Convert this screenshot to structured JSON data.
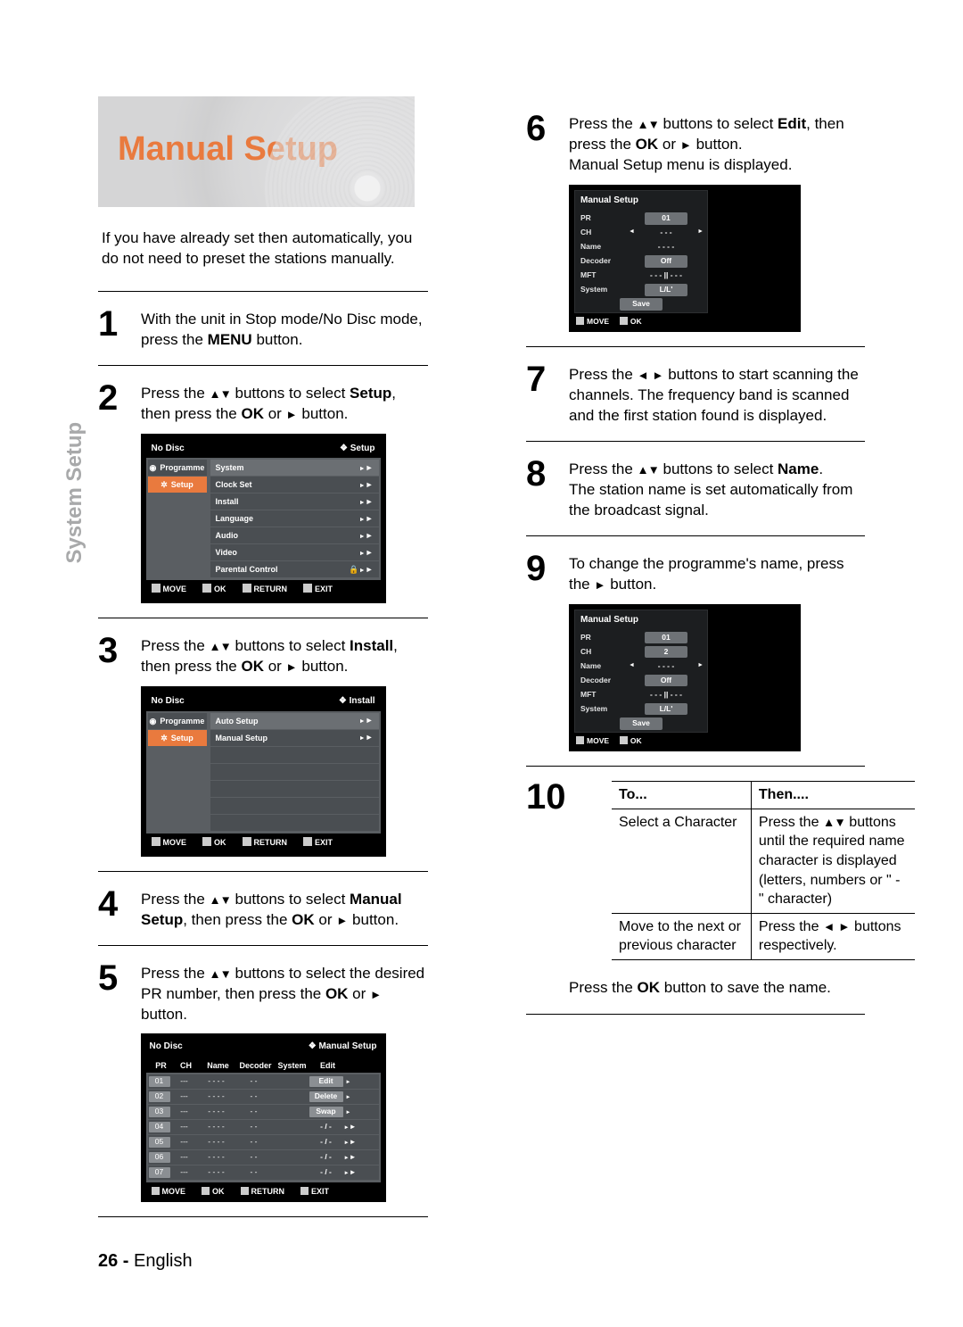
{
  "side_tab": "System Setup",
  "title": "Manual Setup",
  "intro": "If you have already set then automatically, you do not need to preset the stations manually.",
  "steps": {
    "s1": {
      "n": "1",
      "before": "With the unit in Stop mode/No Disc mode, press the ",
      "bold": "MENU",
      "after": " button."
    },
    "s2": {
      "n": "2",
      "txt_a": "Press the ",
      "txt_b": " buttons to select ",
      "bold": "Setup",
      "txt_c": ", then press the ",
      "bold2": "OK",
      "txt_d": " or ",
      "txt_e": " button."
    },
    "s3": {
      "n": "3",
      "txt_a": "Press the ",
      "txt_b": " buttons to select ",
      "bold": "Install",
      "txt_c": ", then press the ",
      "bold2": "OK",
      "txt_d": " or ",
      "txt_e": " button."
    },
    "s4": {
      "n": "4",
      "txt_a": "Press the ",
      "txt_b": " buttons to select ",
      "bold": "Manual Setup",
      "txt_c": ", then press the ",
      "bold2": "OK",
      "txt_d": " or ",
      "txt_e": " button."
    },
    "s5": {
      "n": "5",
      "txt_a": "Press the ",
      "txt_b": " buttons to select the desired PR number, then press the ",
      "bold": "OK",
      "txt_c": " or ",
      "txt_d": " button."
    },
    "s6": {
      "n": "6",
      "txt_a": "Press the ",
      "txt_b": " buttons to select ",
      "bold": "Edit",
      "txt_c": ", then press the ",
      "bold2": "OK",
      "txt_d": " or ",
      "txt_e": " button.",
      "tail": "Manual Setup menu is displayed."
    },
    "s7": {
      "n": "7",
      "txt_a": "Press the ",
      "txt_b": " buttons to start scanning the channels. The frequency band is scanned and the first station found is displayed."
    },
    "s8": {
      "n": "8",
      "txt_a": "Press the ",
      "txt_b": " buttons to select ",
      "bold": "Name",
      "txt_c": ".",
      "tail": "The station name is set automatically from the broadcast signal."
    },
    "s9": {
      "n": "9",
      "txt_a": "To change the programme's name, press the ",
      "txt_b": " button."
    },
    "s10": {
      "n": "10",
      "head_to": "To...",
      "head_then": "Then....",
      "r1_to": "Select a Character",
      "r1_then_a": "Press the ",
      "r1_then_b": " buttons until the required name character is displayed (letters, numbers or \" - \" character)",
      "r2_to": "Move to the next or previous character",
      "r2_then_a": "Press the ",
      "r2_then_b": " buttons respectively.",
      "tail": "Press the ",
      "tail_bold": "OK",
      "tail_after": " button to save the name."
    }
  },
  "osd1": {
    "top_left": "No Disc",
    "top_right": "❖  Setup",
    "tab1": "Programme",
    "tab2": "Setup",
    "menu": [
      "System",
      "Clock Set",
      "Install",
      "Language",
      "Audio",
      "Video",
      "Parental Control"
    ],
    "foot": {
      "move": "MOVE",
      "ok": "OK",
      "ret": "RETURN",
      "exit": "EXIT"
    }
  },
  "osd2": {
    "top_left": "No Disc",
    "top_right": "❖  Install",
    "tab1": "Programme",
    "tab2": "Setup",
    "menu": [
      "Auto Setup",
      "Manual Setup"
    ],
    "foot": {
      "move": "MOVE",
      "ok": "OK",
      "ret": "RETURN",
      "exit": "EXIT"
    }
  },
  "osd3": {
    "top_left": "No Disc",
    "top_right": "❖  Manual Setup",
    "headers": [
      "PR",
      "CH",
      "Name",
      "Decoder",
      "System",
      "Edit"
    ],
    "rows": [
      {
        "pr": "01",
        "ch": "---",
        "name": "- - - -",
        "dec": "- -",
        "sys": "",
        "act": "Edit",
        "dim": false,
        "ar": ""
      },
      {
        "pr": "02",
        "ch": "---",
        "name": "- - - -",
        "dec": "- -",
        "sys": "",
        "act": "Delete",
        "dim": false,
        "ar": ""
      },
      {
        "pr": "03",
        "ch": "---",
        "name": "- - - -",
        "dec": "- -",
        "sys": "",
        "act": "Swap",
        "dim": false,
        "ar": ""
      },
      {
        "pr": "04",
        "ch": "---",
        "name": "- - - -",
        "dec": "- -",
        "sys": "",
        "act": "- / -",
        "dim": true,
        "ar": "►"
      },
      {
        "pr": "05",
        "ch": "---",
        "name": "- - - -",
        "dec": "- -",
        "sys": "",
        "act": "- / -",
        "dim": true,
        "ar": "►"
      },
      {
        "pr": "06",
        "ch": "---",
        "name": "- - - -",
        "dec": "- -",
        "sys": "",
        "act": "- / -",
        "dim": true,
        "ar": "►"
      },
      {
        "pr": "07",
        "ch": "---",
        "name": "- - - -",
        "dec": "- -",
        "sys": "",
        "act": "- / -",
        "dim": true,
        "ar": "►"
      }
    ],
    "foot": {
      "move": "MOVE",
      "ok": "OK",
      "ret": "RETURN",
      "exit": "EXIT"
    }
  },
  "osd_ms1": {
    "title": "Manual Setup",
    "rows": [
      {
        "lab": "PR",
        "val": "01",
        "pill": true,
        "arrow": false
      },
      {
        "lab": "CH",
        "val": "- - -",
        "pill": false,
        "arrow": true
      },
      {
        "lab": "Name",
        "val": "- - - -",
        "pill": false,
        "arrow": false
      },
      {
        "lab": "Decoder",
        "val": "Off",
        "pill": true,
        "arrow": false
      },
      {
        "lab": "MFT",
        "val": "- - - || - - -",
        "pill": false,
        "arrow": false
      },
      {
        "lab": "System",
        "val": "L/L'",
        "pill": true,
        "arrow": false
      }
    ],
    "save": "Save",
    "foot": {
      "move": "MOVE",
      "ok": "OK"
    }
  },
  "osd_ms2": {
    "title": "Manual Setup",
    "rows": [
      {
        "lab": "PR",
        "val": "01",
        "pill": true,
        "arrow": false
      },
      {
        "lab": "CH",
        "val": "2",
        "pill": true,
        "arrow": false
      },
      {
        "lab": "Name",
        "val": "- - - -",
        "pill": false,
        "arrow": true
      },
      {
        "lab": "Decoder",
        "val": "Off",
        "pill": true,
        "arrow": false
      },
      {
        "lab": "MFT",
        "val": "- - - || - - -",
        "pill": false,
        "arrow": false
      },
      {
        "lab": "System",
        "val": "L/L'",
        "pill": true,
        "arrow": false
      }
    ],
    "save": "Save",
    "foot": {
      "move": "MOVE",
      "ok": "OK"
    }
  },
  "page_footer": {
    "num": "26 -",
    "lang": "English"
  }
}
